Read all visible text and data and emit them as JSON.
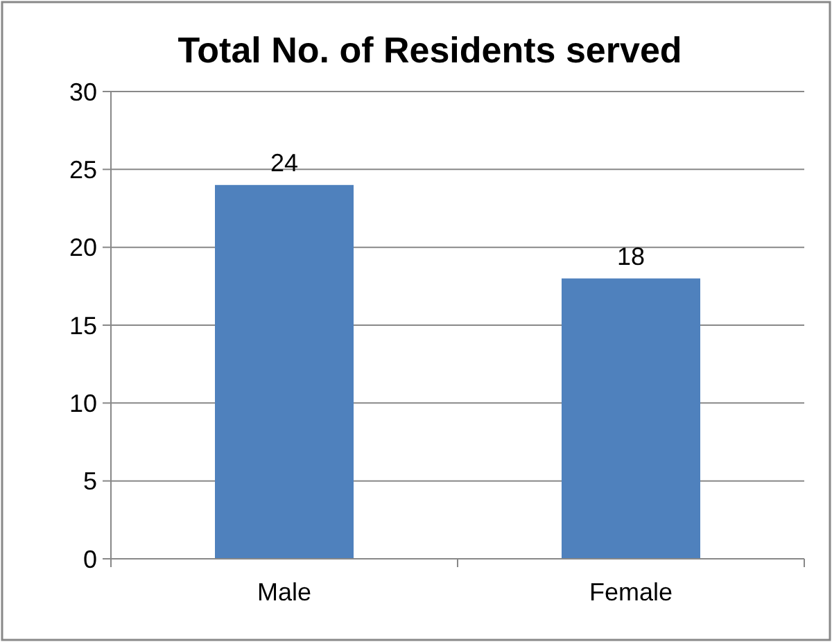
{
  "chart_data": {
    "type": "bar",
    "title": "Total No. of Residents served",
    "categories": [
      "Male",
      "Female"
    ],
    "values": [
      24,
      18
    ],
    "color": "#4f81bd",
    "ylim": [
      0,
      30
    ],
    "yticks": [
      0,
      5,
      10,
      15,
      20,
      25,
      30
    ],
    "grid": "y",
    "data_labels": true
  }
}
